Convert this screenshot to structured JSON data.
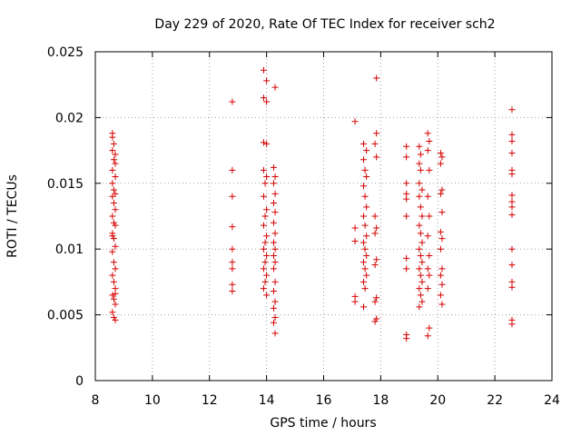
{
  "chart_data": {
    "type": "scatter",
    "title": "Day 229 of 2020, Rate Of TEC Index for receiver sch2",
    "xlabel": "GPS time / hours",
    "ylabel": "ROTI / TECUs",
    "xlim": [
      8,
      24
    ],
    "ylim": [
      0,
      0.025
    ],
    "x_ticks": [
      8,
      10,
      12,
      14,
      16,
      18,
      20,
      22,
      24
    ],
    "y_ticks": [
      0,
      0.005,
      0.01,
      0.015,
      0.02,
      0.025
    ],
    "x_tick_labels": [
      "8",
      "10",
      "12",
      "14",
      "16",
      "18",
      "20",
      "22",
      "24"
    ],
    "y_tick_labels": [
      "0",
      "0.005",
      "0.01",
      "0.015",
      "0.02",
      "0.025"
    ],
    "grid": true,
    "marker": "+",
    "color": "#d40000",
    "points": [
      [
        8.6,
        0.0185
      ],
      [
        8.65,
        0.018
      ],
      [
        8.6,
        0.0175
      ],
      [
        8.7,
        0.0172
      ],
      [
        8.65,
        0.0168
      ],
      [
        8.6,
        0.016
      ],
      [
        8.7,
        0.0155
      ],
      [
        8.6,
        0.015
      ],
      [
        8.65,
        0.0145
      ],
      [
        8.7,
        0.0142
      ],
      [
        8.6,
        0.014
      ],
      [
        8.65,
        0.0135
      ],
      [
        8.7,
        0.013
      ],
      [
        8.6,
        0.0125
      ],
      [
        8.65,
        0.012
      ],
      [
        8.7,
        0.0118
      ],
      [
        8.6,
        0.0112
      ],
      [
        8.65,
        0.0108
      ],
      [
        8.7,
        0.0102
      ],
      [
        8.6,
        0.0098
      ],
      [
        8.65,
        0.009
      ],
      [
        8.7,
        0.0085
      ],
      [
        8.6,
        0.008
      ],
      [
        8.65,
        0.0075
      ],
      [
        8.7,
        0.007
      ],
      [
        8.6,
        0.0065
      ],
      [
        8.65,
        0.0062
      ],
      [
        8.7,
        0.0058
      ],
      [
        8.6,
        0.0052
      ],
      [
        8.65,
        0.0048
      ],
      [
        8.7,
        0.0046
      ],
      [
        8.6,
        0.0188
      ],
      [
        8.7,
        0.0165
      ],
      [
        8.6,
        0.011
      ],
      [
        8.7,
        0.0066
      ],
      [
        12.8,
        0.0212
      ],
      [
        12.8,
        0.016
      ],
      [
        12.8,
        0.014
      ],
      [
        12.8,
        0.0117
      ],
      [
        12.8,
        0.01
      ],
      [
        12.8,
        0.009
      ],
      [
        12.8,
        0.0085
      ],
      [
        12.8,
        0.0073
      ],
      [
        12.8,
        0.0068
      ],
      [
        13.9,
        0.0236
      ],
      [
        14.0,
        0.0228
      ],
      [
        13.9,
        0.0215
      ],
      [
        14.0,
        0.0212
      ],
      [
        14.3,
        0.0223
      ],
      [
        13.9,
        0.0181
      ],
      [
        14.0,
        0.018
      ],
      [
        13.9,
        0.016
      ],
      [
        14.0,
        0.0155
      ],
      [
        13.95,
        0.015
      ],
      [
        13.9,
        0.014
      ],
      [
        14.0,
        0.013
      ],
      [
        13.95,
        0.0125
      ],
      [
        13.9,
        0.0118
      ],
      [
        14.0,
        0.011
      ],
      [
        13.95,
        0.0105
      ],
      [
        13.9,
        0.01
      ],
      [
        14.0,
        0.0095
      ],
      [
        13.95,
        0.009
      ],
      [
        13.9,
        0.0085
      ],
      [
        14.0,
        0.008
      ],
      [
        13.95,
        0.0075
      ],
      [
        13.9,
        0.007
      ],
      [
        14.0,
        0.0065
      ],
      [
        14.25,
        0.0162
      ],
      [
        14.3,
        0.0155
      ],
      [
        14.25,
        0.015
      ],
      [
        14.3,
        0.0142
      ],
      [
        14.25,
        0.0135
      ],
      [
        14.3,
        0.0128
      ],
      [
        14.25,
        0.012
      ],
      [
        14.3,
        0.0112
      ],
      [
        14.25,
        0.0105
      ],
      [
        14.3,
        0.01
      ],
      [
        14.25,
        0.0095
      ],
      [
        14.3,
        0.009
      ],
      [
        14.25,
        0.0085
      ],
      [
        14.3,
        0.0075
      ],
      [
        14.25,
        0.0068
      ],
      [
        14.3,
        0.006
      ],
      [
        14.25,
        0.0055
      ],
      [
        14.3,
        0.0048
      ],
      [
        14.25,
        0.0044
      ],
      [
        14.3,
        0.0036
      ],
      [
        17.1,
        0.0197
      ],
      [
        17.1,
        0.0116
      ],
      [
        17.1,
        0.0106
      ],
      [
        17.1,
        0.0064
      ],
      [
        17.1,
        0.006
      ],
      [
        17.4,
        0.018
      ],
      [
        17.5,
        0.0175
      ],
      [
        17.4,
        0.0168
      ],
      [
        17.45,
        0.016
      ],
      [
        17.5,
        0.0155
      ],
      [
        17.4,
        0.0148
      ],
      [
        17.45,
        0.014
      ],
      [
        17.5,
        0.0132
      ],
      [
        17.4,
        0.0125
      ],
      [
        17.45,
        0.0118
      ],
      [
        17.5,
        0.011
      ],
      [
        17.4,
        0.0105
      ],
      [
        17.45,
        0.01
      ],
      [
        17.5,
        0.0095
      ],
      [
        17.4,
        0.009
      ],
      [
        17.45,
        0.0085
      ],
      [
        17.5,
        0.008
      ],
      [
        17.4,
        0.0075
      ],
      [
        17.45,
        0.007
      ],
      [
        17.4,
        0.0056
      ],
      [
        17.85,
        0.023
      ],
      [
        17.85,
        0.0188
      ],
      [
        17.8,
        0.018
      ],
      [
        17.85,
        0.017
      ],
      [
        17.8,
        0.0125
      ],
      [
        17.85,
        0.0116
      ],
      [
        17.8,
        0.0112
      ],
      [
        17.85,
        0.0092
      ],
      [
        17.8,
        0.0088
      ],
      [
        17.85,
        0.0063
      ],
      [
        17.8,
        0.006
      ],
      [
        17.85,
        0.0047
      ],
      [
        17.8,
        0.0045
      ],
      [
        18.9,
        0.0178
      ],
      [
        18.9,
        0.017
      ],
      [
        18.9,
        0.015
      ],
      [
        18.9,
        0.0142
      ],
      [
        18.9,
        0.0138
      ],
      [
        18.9,
        0.0125
      ],
      [
        18.9,
        0.0093
      ],
      [
        18.9,
        0.0085
      ],
      [
        18.9,
        0.0035
      ],
      [
        18.9,
        0.0032
      ],
      [
        19.35,
        0.0178
      ],
      [
        19.4,
        0.0172
      ],
      [
        19.35,
        0.0165
      ],
      [
        19.4,
        0.016
      ],
      [
        19.35,
        0.015
      ],
      [
        19.45,
        0.0145
      ],
      [
        19.35,
        0.014
      ],
      [
        19.4,
        0.0132
      ],
      [
        19.45,
        0.0125
      ],
      [
        19.35,
        0.0118
      ],
      [
        19.4,
        0.0112
      ],
      [
        19.45,
        0.0105
      ],
      [
        19.35,
        0.01
      ],
      [
        19.4,
        0.0095
      ],
      [
        19.45,
        0.009
      ],
      [
        19.35,
        0.0085
      ],
      [
        19.4,
        0.008
      ],
      [
        19.45,
        0.0075
      ],
      [
        19.35,
        0.007
      ],
      [
        19.4,
        0.0065
      ],
      [
        19.45,
        0.006
      ],
      [
        19.35,
        0.0056
      ],
      [
        19.65,
        0.0188
      ],
      [
        19.7,
        0.0182
      ],
      [
        19.65,
        0.0175
      ],
      [
        19.7,
        0.016
      ],
      [
        19.65,
        0.014
      ],
      [
        19.7,
        0.0125
      ],
      [
        19.65,
        0.011
      ],
      [
        19.7,
        0.0095
      ],
      [
        19.65,
        0.0085
      ],
      [
        19.7,
        0.008
      ],
      [
        19.65,
        0.007
      ],
      [
        19.7,
        0.004
      ],
      [
        19.65,
        0.0034
      ],
      [
        20.1,
        0.0173
      ],
      [
        20.15,
        0.017
      ],
      [
        20.1,
        0.0165
      ],
      [
        20.15,
        0.0145
      ],
      [
        20.1,
        0.0142
      ],
      [
        20.15,
        0.0128
      ],
      [
        20.1,
        0.0113
      ],
      [
        20.15,
        0.0108
      ],
      [
        20.1,
        0.01
      ],
      [
        20.15,
        0.0085
      ],
      [
        20.1,
        0.008
      ],
      [
        20.15,
        0.0073
      ],
      [
        20.1,
        0.0065
      ],
      [
        20.15,
        0.0058
      ],
      [
        22.6,
        0.0206
      ],
      [
        22.6,
        0.0187
      ],
      [
        22.6,
        0.0182
      ],
      [
        22.6,
        0.0173
      ],
      [
        22.6,
        0.016
      ],
      [
        22.6,
        0.0157
      ],
      [
        22.6,
        0.0141
      ],
      [
        22.6,
        0.0136
      ],
      [
        22.6,
        0.0132
      ],
      [
        22.6,
        0.0126
      ],
      [
        22.6,
        0.01
      ],
      [
        22.6,
        0.0088
      ],
      [
        22.6,
        0.0075
      ],
      [
        22.6,
        0.0071
      ],
      [
        22.6,
        0.0046
      ],
      [
        22.6,
        0.0043
      ]
    ]
  }
}
